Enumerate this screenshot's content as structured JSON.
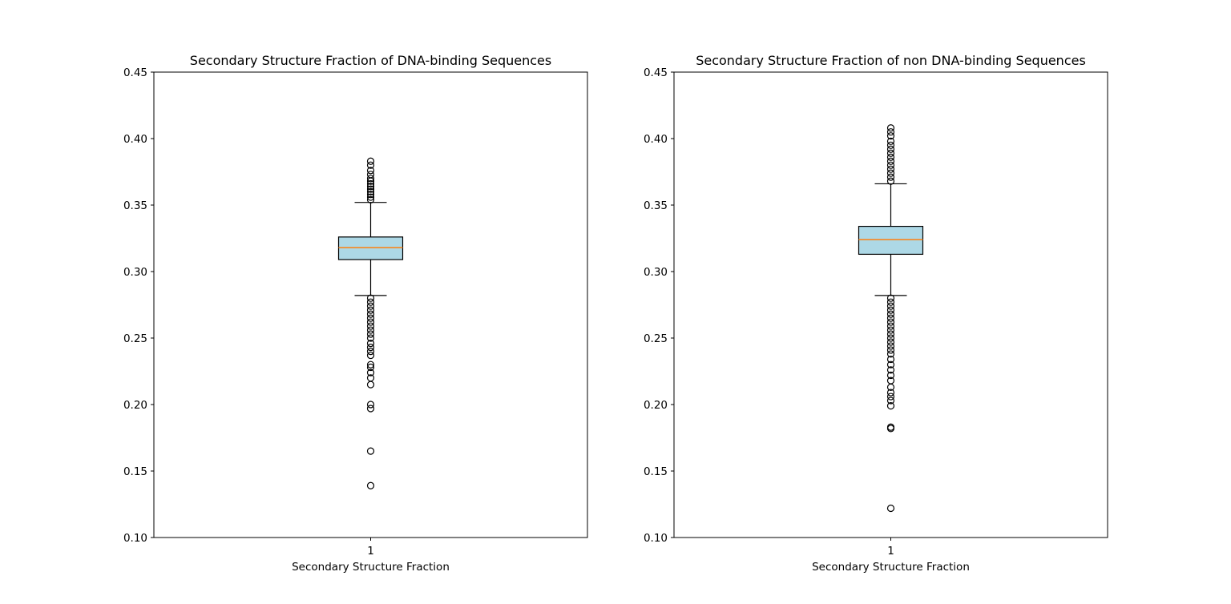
{
  "chart_data": [
    {
      "type": "boxplot",
      "title": "Secondary Structure Fraction of DNA-binding Sequences",
      "xlabel": "Secondary Structure Fraction",
      "ylabel": "",
      "categories": [
        "1"
      ],
      "ylim": [
        0.1,
        0.45
      ],
      "yticks": [
        "0.10",
        "0.15",
        "0.20",
        "0.25",
        "0.30",
        "0.35",
        "0.40",
        "0.45"
      ],
      "grid": false,
      "box": {
        "q1": 0.309,
        "median": 0.318,
        "q3": 0.326,
        "whisker_low": 0.282,
        "whisker_high": 0.352,
        "outliers": [
          0.383,
          0.38,
          0.376,
          0.373,
          0.37,
          0.368,
          0.366,
          0.364,
          0.362,
          0.36,
          0.358,
          0.356,
          0.354,
          0.28,
          0.277,
          0.274,
          0.271,
          0.268,
          0.265,
          0.262,
          0.259,
          0.256,
          0.253,
          0.25,
          0.246,
          0.243,
          0.24,
          0.237,
          0.23,
          0.228,
          0.224,
          0.22,
          0.215,
          0.2,
          0.197,
          0.165,
          0.139
        ]
      },
      "colors": {
        "box_fill": "#add8e6",
        "median": "#ff7f0e",
        "line": "#000000"
      }
    },
    {
      "type": "boxplot",
      "title": "Secondary Structure Fraction of non DNA-binding Sequences",
      "xlabel": "Secondary Structure Fraction",
      "ylabel": "",
      "categories": [
        "1"
      ],
      "ylim": [
        0.1,
        0.45
      ],
      "yticks": [
        "0.10",
        "0.15",
        "0.20",
        "0.25",
        "0.30",
        "0.35",
        "0.40",
        "0.45"
      ],
      "grid": false,
      "box": {
        "q1": 0.313,
        "median": 0.324,
        "q3": 0.334,
        "whisker_low": 0.282,
        "whisker_high": 0.366,
        "outliers": [
          0.408,
          0.405,
          0.402,
          0.398,
          0.395,
          0.392,
          0.389,
          0.386,
          0.383,
          0.38,
          0.377,
          0.374,
          0.371,
          0.368,
          0.28,
          0.277,
          0.274,
          0.271,
          0.268,
          0.265,
          0.262,
          0.259,
          0.256,
          0.253,
          0.25,
          0.247,
          0.244,
          0.241,
          0.238,
          0.234,
          0.23,
          0.226,
          0.222,
          0.218,
          0.213,
          0.209,
          0.206,
          0.203,
          0.199,
          0.183,
          0.182,
          0.122
        ]
      },
      "colors": {
        "box_fill": "#add8e6",
        "median": "#ff7f0e",
        "line": "#000000"
      }
    }
  ]
}
